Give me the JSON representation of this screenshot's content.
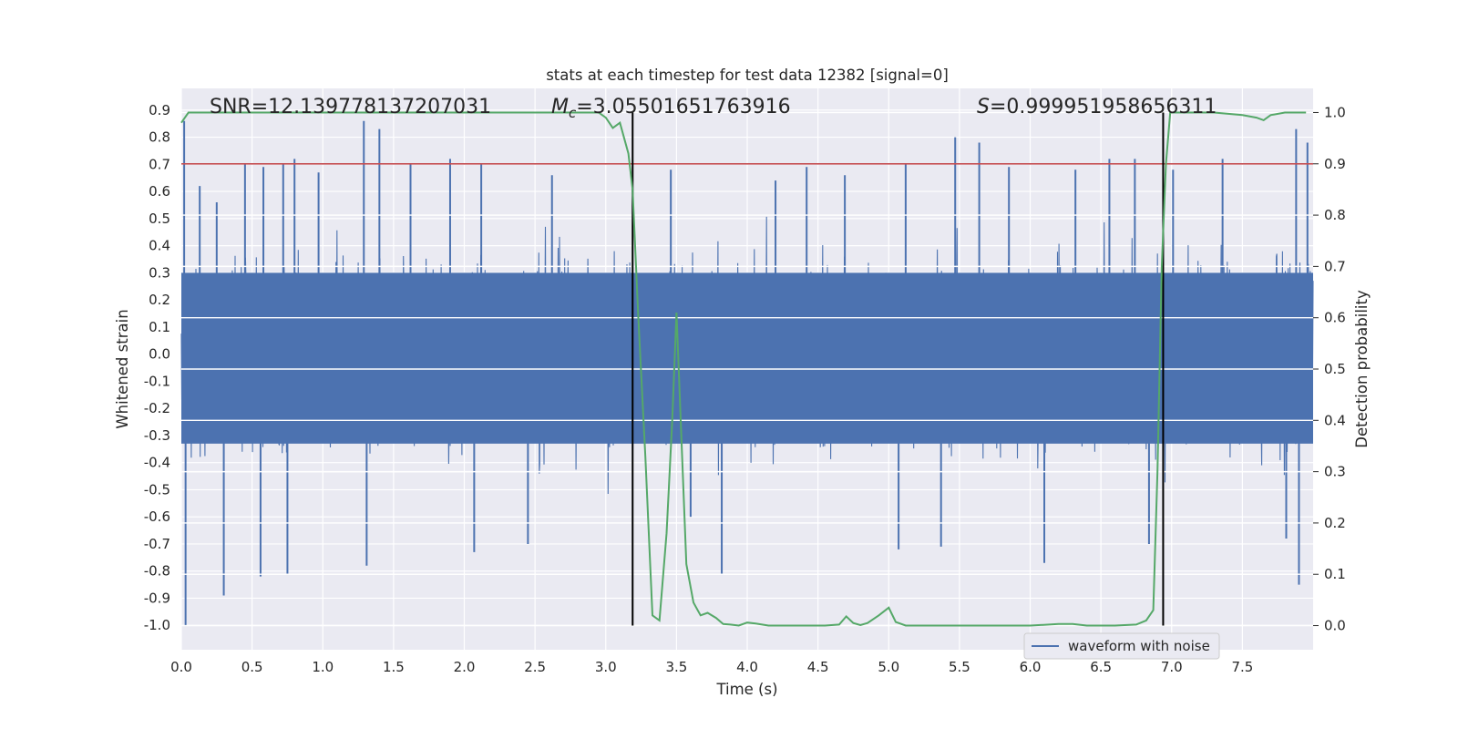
{
  "chart_data": {
    "type": "line",
    "title": "stats at each timestep for test data 12382 [signal=0]",
    "xlabel": "Time (s)",
    "ylabel": "Whitened strain",
    "y2label": "Detection probability",
    "xlim": [
      0.0,
      8.0
    ],
    "ylim": [
      -1.09,
      0.98
    ],
    "y2lim": [
      -0.047,
      1.047
    ],
    "x_ticks": [
      "0.0",
      "0.5",
      "1.0",
      "1.5",
      "2.0",
      "2.5",
      "3.0",
      "3.5",
      "4.0",
      "4.5",
      "5.0",
      "5.5",
      "6.0",
      "6.5",
      "7.0",
      "7.5"
    ],
    "y_ticks": [
      "0.9",
      "0.8",
      "0.7",
      "0.6",
      "0.5",
      "0.4",
      "0.3",
      "0.2",
      "0.1",
      "0.0",
      "-0.1",
      "-0.2",
      "-0.3",
      "-0.4",
      "-0.5",
      "-0.6",
      "-0.7",
      "-0.8",
      "-0.9",
      "-1.0"
    ],
    "y2_ticks": [
      "1.0",
      "0.9",
      "0.8",
      "0.7",
      "0.6",
      "0.5",
      "0.4",
      "0.3",
      "0.2",
      "0.1",
      "0.0"
    ],
    "threshold_y2": 0.9,
    "vlines_x": [
      3.19,
      6.94
    ],
    "annotations": {
      "snr": "SNR=12.139778137207031",
      "mc_symbol": "M",
      "mc_sub": "c",
      "mc_value": "=3.05501651763916",
      "s_symbol": "S",
      "s_value": "=0.999951958656311"
    },
    "legend": {
      "label": "waveform with noise",
      "position": "lower-right"
    },
    "grid": true,
    "series": [
      {
        "name": "waveform with noise",
        "axis": "left",
        "color": "#4c72b0",
        "description_of_envelope": "dense noise mostly within [-0.5, 0.5] with spikes",
        "spikes": [
          {
            "x": 0.02,
            "y": 0.86
          },
          {
            "x": 0.03,
            "y": -1.0
          },
          {
            "x": 0.13,
            "y": 0.62
          },
          {
            "x": 0.25,
            "y": 0.56
          },
          {
            "x": 0.3,
            "y": -0.89
          },
          {
            "x": 0.45,
            "y": 0.7
          },
          {
            "x": 0.56,
            "y": -0.82
          },
          {
            "x": 0.58,
            "y": 0.69
          },
          {
            "x": 0.72,
            "y": 0.7
          },
          {
            "x": 0.75,
            "y": -0.81
          },
          {
            "x": 0.8,
            "y": 0.72
          },
          {
            "x": 0.97,
            "y": 0.67
          },
          {
            "x": 1.29,
            "y": 0.86
          },
          {
            "x": 1.31,
            "y": -0.78
          },
          {
            "x": 1.4,
            "y": 0.83
          },
          {
            "x": 1.62,
            "y": 0.7
          },
          {
            "x": 1.9,
            "y": 0.72
          },
          {
            "x": 2.07,
            "y": -0.73
          },
          {
            "x": 2.12,
            "y": 0.7
          },
          {
            "x": 2.45,
            "y": -0.7
          },
          {
            "x": 2.62,
            "y": 0.66
          },
          {
            "x": 3.46,
            "y": 0.68
          },
          {
            "x": 3.6,
            "y": -0.6
          },
          {
            "x": 3.82,
            "y": -0.81
          },
          {
            "x": 4.2,
            "y": 0.64
          },
          {
            "x": 4.42,
            "y": 0.69
          },
          {
            "x": 4.69,
            "y": 0.66
          },
          {
            "x": 5.07,
            "y": -0.72
          },
          {
            "x": 5.12,
            "y": 0.7
          },
          {
            "x": 5.37,
            "y": -0.71
          },
          {
            "x": 5.47,
            "y": 0.8
          },
          {
            "x": 5.64,
            "y": 0.78
          },
          {
            "x": 5.85,
            "y": 0.69
          },
          {
            "x": 6.1,
            "y": -0.77
          },
          {
            "x": 6.32,
            "y": 0.68
          },
          {
            "x": 6.56,
            "y": 0.72
          },
          {
            "x": 6.74,
            "y": 0.72
          },
          {
            "x": 6.84,
            "y": -0.7
          },
          {
            "x": 7.01,
            "y": 0.68
          },
          {
            "x": 7.36,
            "y": 0.72
          },
          {
            "x": 7.81,
            "y": -0.68
          },
          {
            "x": 7.88,
            "y": 0.83
          },
          {
            "x": 7.9,
            "y": -0.85
          },
          {
            "x": 7.96,
            "y": 0.78
          }
        ]
      },
      {
        "name": "",
        "axis": "right",
        "color": "#55a868",
        "x": [
          0.0,
          0.05,
          0.1,
          0.5,
          1.0,
          1.5,
          2.0,
          2.5,
          2.8,
          2.95,
          3.0,
          3.05,
          3.1,
          3.16,
          3.19,
          3.23,
          3.28,
          3.33,
          3.38,
          3.43,
          3.47,
          3.5,
          3.53,
          3.57,
          3.62,
          3.67,
          3.72,
          3.78,
          3.83,
          3.88,
          3.94,
          4.0,
          4.06,
          4.15,
          4.25,
          4.4,
          4.55,
          4.65,
          4.7,
          4.75,
          4.8,
          4.85,
          4.93,
          5.0,
          5.05,
          5.12,
          5.2,
          5.3,
          5.6,
          6.0,
          6.2,
          6.3,
          6.4,
          6.6,
          6.75,
          6.82,
          6.87,
          6.9,
          6.93,
          6.96,
          6.99,
          7.02,
          7.1,
          7.3,
          7.5,
          7.6,
          7.65,
          7.7,
          7.8,
          7.95
        ],
        "values": [
          0.98,
          1.0,
          1.0,
          1.0,
          1.0,
          1.0,
          1.0,
          1.0,
          1.0,
          1.0,
          0.99,
          0.97,
          0.98,
          0.92,
          0.85,
          0.6,
          0.33,
          0.02,
          0.01,
          0.18,
          0.4,
          0.61,
          0.4,
          0.12,
          0.045,
          0.02,
          0.025,
          0.015,
          0.003,
          0.002,
          0.0,
          0.006,
          0.004,
          0.0,
          0.0,
          0.0,
          0.0,
          0.002,
          0.018,
          0.005,
          0.001,
          0.005,
          0.02,
          0.035,
          0.007,
          0.0,
          0.0,
          0.0,
          0.0,
          0.0,
          0.003,
          0.003,
          0.0,
          0.0,
          0.002,
          0.01,
          0.03,
          0.3,
          0.7,
          0.9,
          1.0,
          1.0,
          1.0,
          1.0,
          0.995,
          0.99,
          0.985,
          0.995,
          1.0,
          1.0
        ]
      }
    ]
  }
}
